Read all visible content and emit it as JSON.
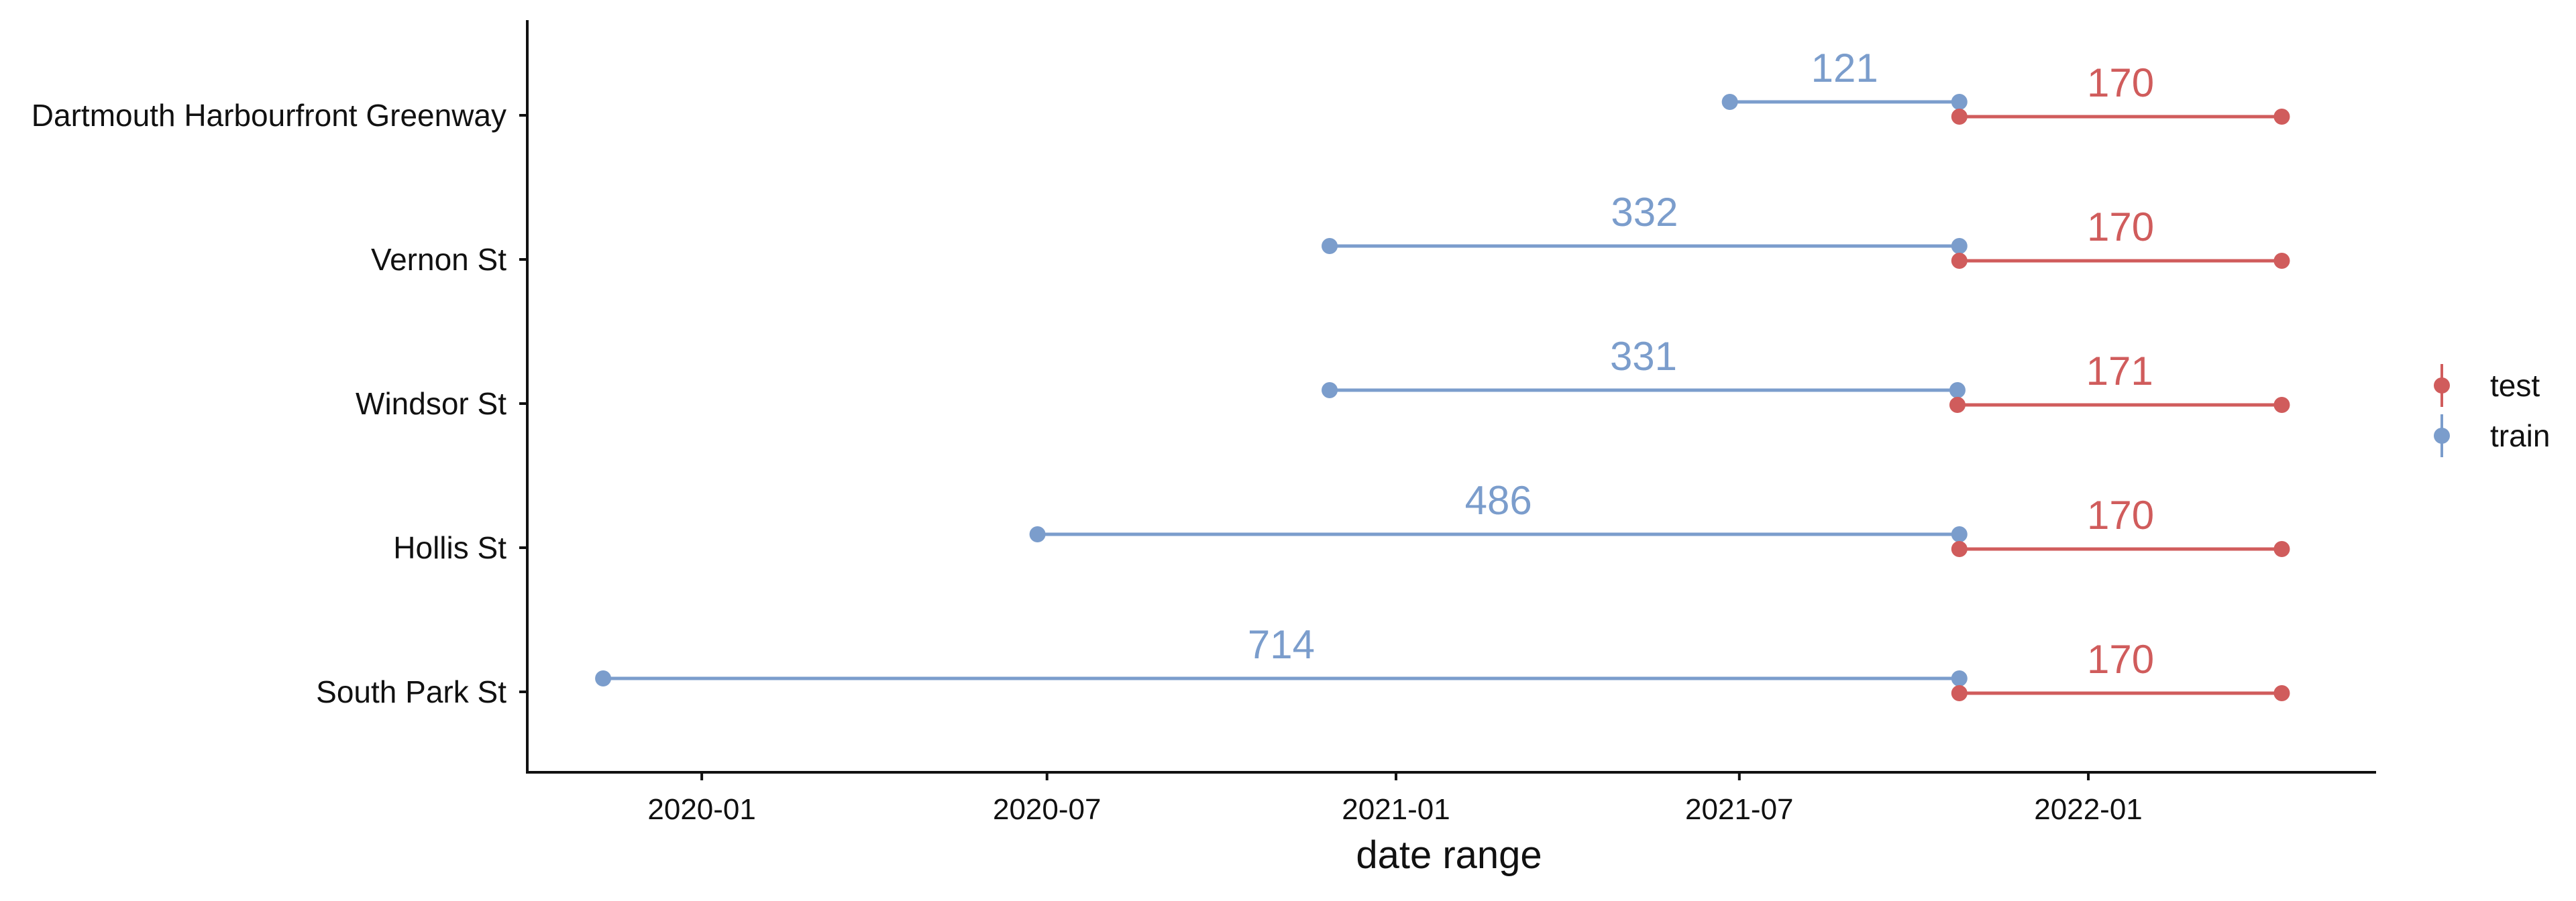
{
  "chart_data": {
    "type": "dumbbell",
    "xlabel": "date range",
    "x_type": "date",
    "xlim": [
      "2019-10-01",
      "2022-06-01"
    ],
    "x_ticks": [
      "2020-01-01",
      "2020-07-01",
      "2021-01-01",
      "2021-07-01",
      "2022-01-01"
    ],
    "x_tick_labels": [
      "2020-01",
      "2020-07",
      "2021-01",
      "2021-07",
      "2022-01"
    ],
    "categories": [
      "Dartmouth Harbourfront Greenway",
      "Vernon St",
      "Windsor St",
      "Hollis St",
      "South Park St"
    ],
    "series": [
      {
        "name": "test",
        "color": "#d05c5c",
        "segments": [
          {
            "category": "Dartmouth Harbourfront Greenway",
            "start": "2021-10-25",
            "end": "2022-04-13",
            "label": "170"
          },
          {
            "category": "Vernon St",
            "start": "2021-10-25",
            "end": "2022-04-13",
            "label": "170"
          },
          {
            "category": "Windsor St",
            "start": "2021-10-24",
            "end": "2022-04-13",
            "label": "171"
          },
          {
            "category": "Hollis St",
            "start": "2021-10-25",
            "end": "2022-04-13",
            "label": "170"
          },
          {
            "category": "South Park St",
            "start": "2021-10-25",
            "end": "2022-04-13",
            "label": "170"
          }
        ]
      },
      {
        "name": "train",
        "color": "#7b9dcc",
        "segments": [
          {
            "category": "Dartmouth Harbourfront Greenway",
            "start": "2021-06-26",
            "end": "2021-10-25",
            "label": "121"
          },
          {
            "category": "Vernon St",
            "start": "2020-11-27",
            "end": "2021-10-25",
            "label": "332"
          },
          {
            "category": "Windsor St",
            "start": "2020-11-27",
            "end": "2021-10-24",
            "label": "331"
          },
          {
            "category": "Hollis St",
            "start": "2020-06-26",
            "end": "2021-10-25",
            "label": "486"
          },
          {
            "category": "South Park St",
            "start": "2019-11-10",
            "end": "2021-10-25",
            "label": "714"
          }
        ]
      }
    ],
    "legend": {
      "position": "right",
      "entries": [
        "test",
        "train"
      ]
    }
  }
}
